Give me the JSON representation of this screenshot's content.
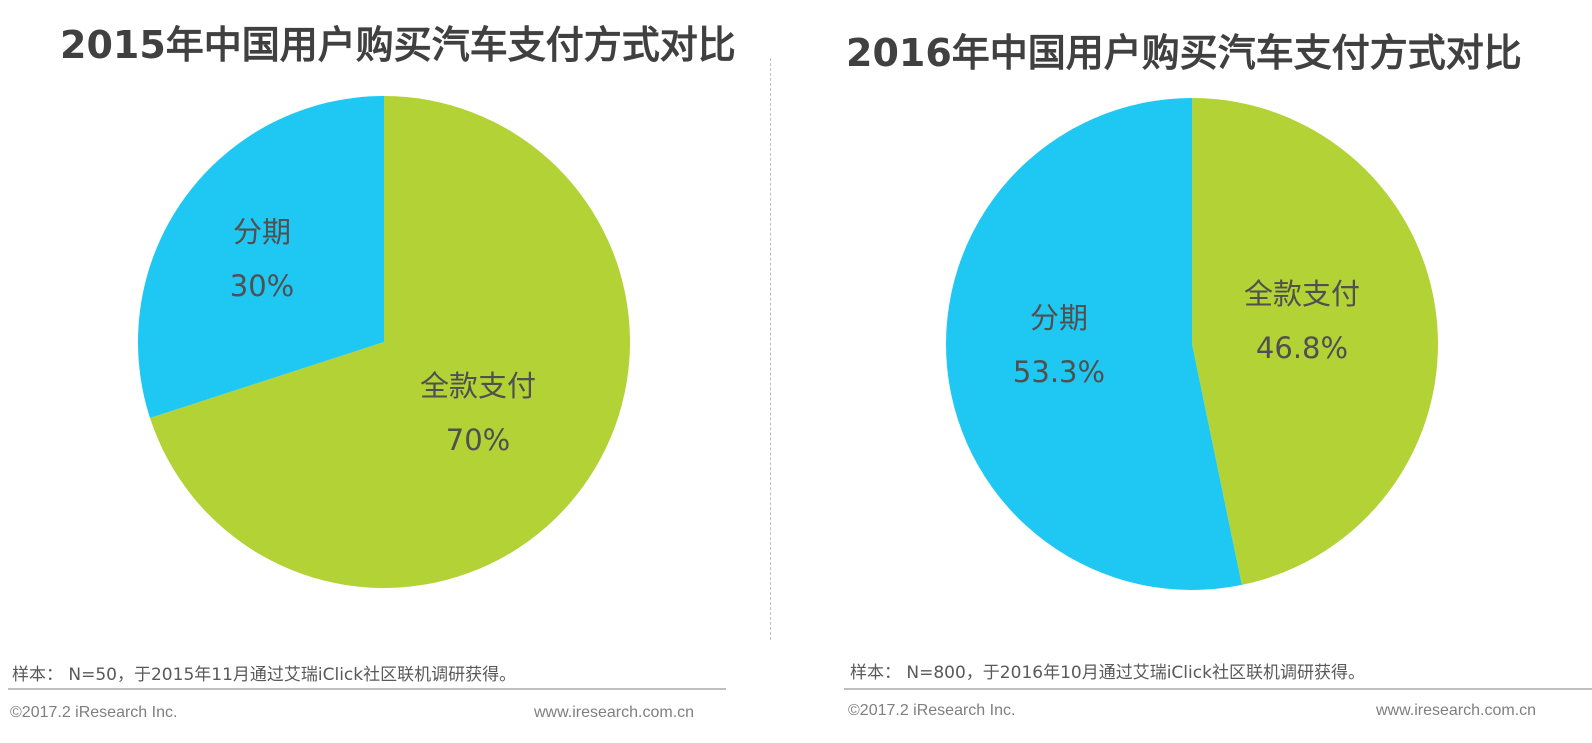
{
  "chart_data": [
    {
      "type": "pie",
      "title": "2015年中国用户购买汽车支付方式对比",
      "slices": [
        {
          "name": "全款支付",
          "value": 70,
          "label": "70%",
          "color": "#b2d235"
        },
        {
          "name": "分期",
          "value": 30,
          "label": "30%",
          "color": "#1fc8f2"
        }
      ],
      "note": "样本： N=50，于2015年11月通过艾瑞iClick社区联机调研获得。"
    },
    {
      "type": "pie",
      "title": "2016年中国用户购买汽车支付方式对比",
      "slices": [
        {
          "name": "全款支付",
          "value": 46.8,
          "label": "46.8%",
          "color": "#b2d235"
        },
        {
          "name": "分期",
          "value": 53.3,
          "label": "53.3%",
          "color": "#1fc8f2"
        }
      ],
      "note": "样本： N=800，于2016年10月通过艾瑞iClick社区联机调研获得。"
    }
  ],
  "footer": {
    "copyright": "©2017.2 iResearch Inc.",
    "website": "www.iresearch.com.cn"
  }
}
